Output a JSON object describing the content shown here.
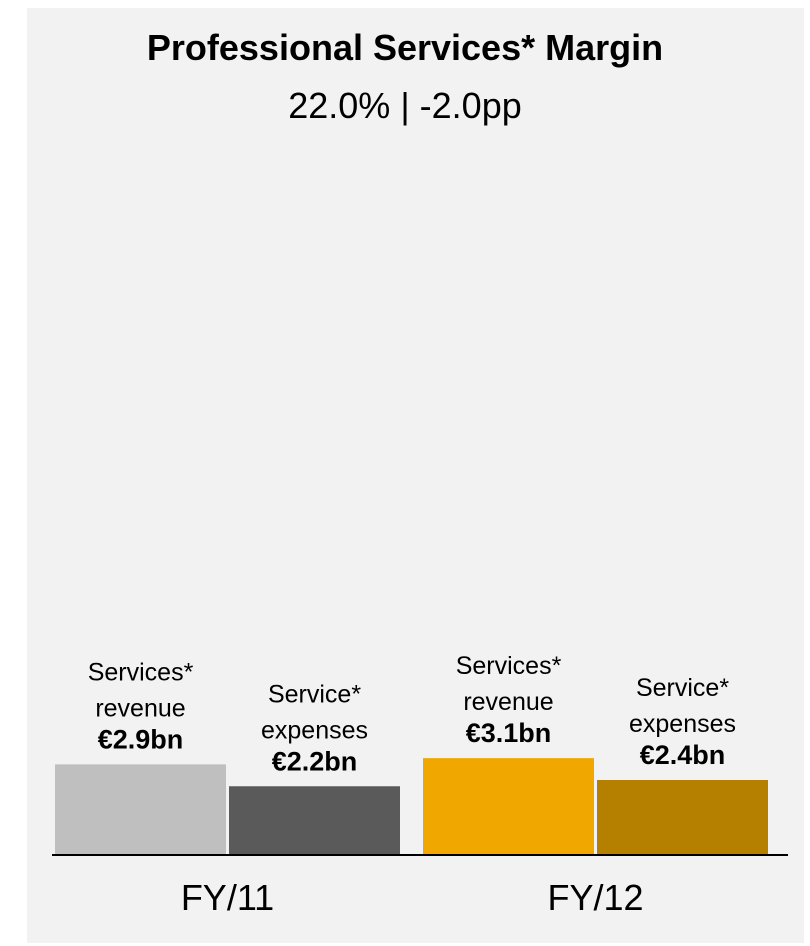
{
  "chart_data": {
    "type": "bar",
    "title": "Professional Services* Margin",
    "subtitle": "22.0% | -2.0pp",
    "categories": [
      "FY/11",
      "FY/12"
    ],
    "ylim": [
      0,
      20
    ],
    "series": [
      {
        "name": "Services* revenue",
        "label_lines": [
          "Services*",
          "revenue"
        ],
        "values": [
          2.9,
          3.1
        ],
        "value_labels": [
          "€2.9bn",
          "€3.1bn"
        ],
        "colors": [
          "#bfbfbf",
          "#f0a800"
        ]
      },
      {
        "name": "Service* expenses",
        "label_lines": [
          "Service*",
          "expenses"
        ],
        "values": [
          2.2,
          2.4
        ],
        "value_labels": [
          "€2.2bn",
          "€2.4bn"
        ],
        "colors": [
          "#5a5a5a",
          "#b57f00"
        ]
      }
    ]
  }
}
